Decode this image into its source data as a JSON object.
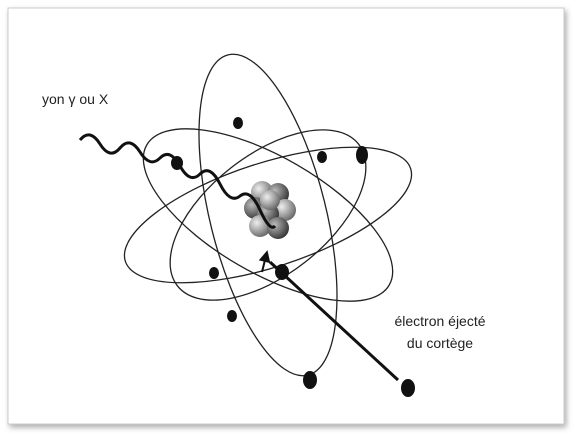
{
  "labels": {
    "incident": "yon γ ou X",
    "ejected": [
      "électron éjecté",
      "du cortège"
    ]
  }
}
